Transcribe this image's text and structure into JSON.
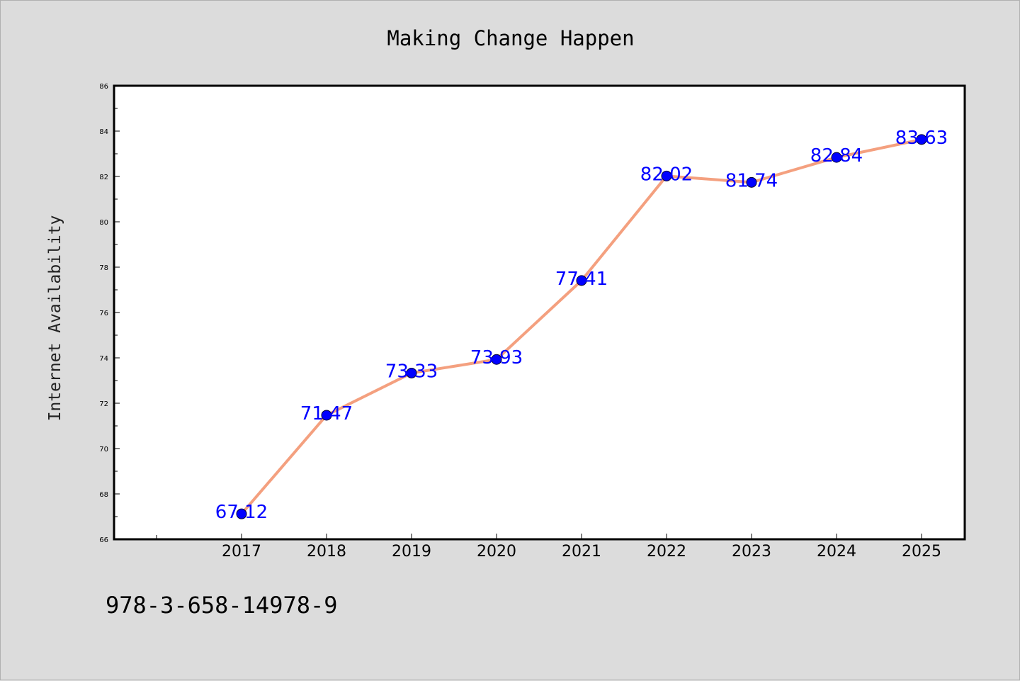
{
  "chart_data": {
    "type": "line",
    "title": "Making Change Happen",
    "xlabel": "",
    "ylabel": "Internet Availability",
    "categories": [
      "2017",
      "2018",
      "2019",
      "2020",
      "2021",
      "2022",
      "2023",
      "2024",
      "2025"
    ],
    "series": [
      {
        "values": [
          67.12,
          71.47,
          73.33,
          73.93,
          77.41,
          82.02,
          81.74,
          82.84,
          83.63
        ],
        "data_labels": [
          "67.12",
          "71.47",
          "73.33",
          "73.93",
          "77.41",
          "82.02",
          "81.74",
          "82.84",
          "83.63"
        ],
        "line_color": "#f4a07f",
        "marker_color": "#0000ff"
      }
    ],
    "ylim": [
      66,
      86
    ],
    "yticks": [
      "66",
      "68",
      "70",
      "72",
      "74",
      "76",
      "78",
      "80",
      "82",
      "84",
      "86"
    ],
    "grid": false,
    "legend": "none"
  },
  "footer": {
    "isbn": "978-3-658-14978-9"
  },
  "colors": {
    "background": "#dcdcdc",
    "plot_area": "#ffffff",
    "label": "#0000ff"
  }
}
